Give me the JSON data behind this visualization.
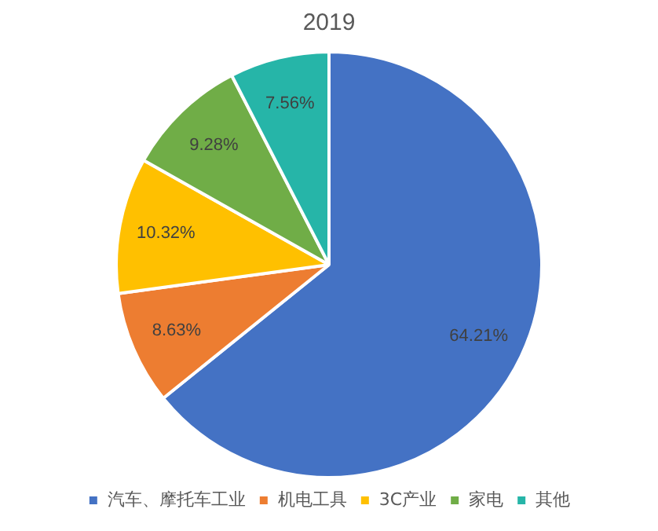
{
  "chart_data": {
    "type": "pie",
    "title": "2019",
    "categories": [
      "汽车、摩托车工业",
      "机电工具",
      "3C产业",
      "家电",
      "其他"
    ],
    "values": [
      64.21,
      8.63,
      10.32,
      9.28,
      7.56
    ],
    "value_labels": [
      "64.21%",
      "8.63%",
      "10.32%",
      "9.28%",
      "7.56%"
    ],
    "colors": [
      "#4472c4",
      "#ed7d31",
      "#ffc000",
      "#70ad47",
      "#26b5a8"
    ],
    "legend": "bottom"
  }
}
